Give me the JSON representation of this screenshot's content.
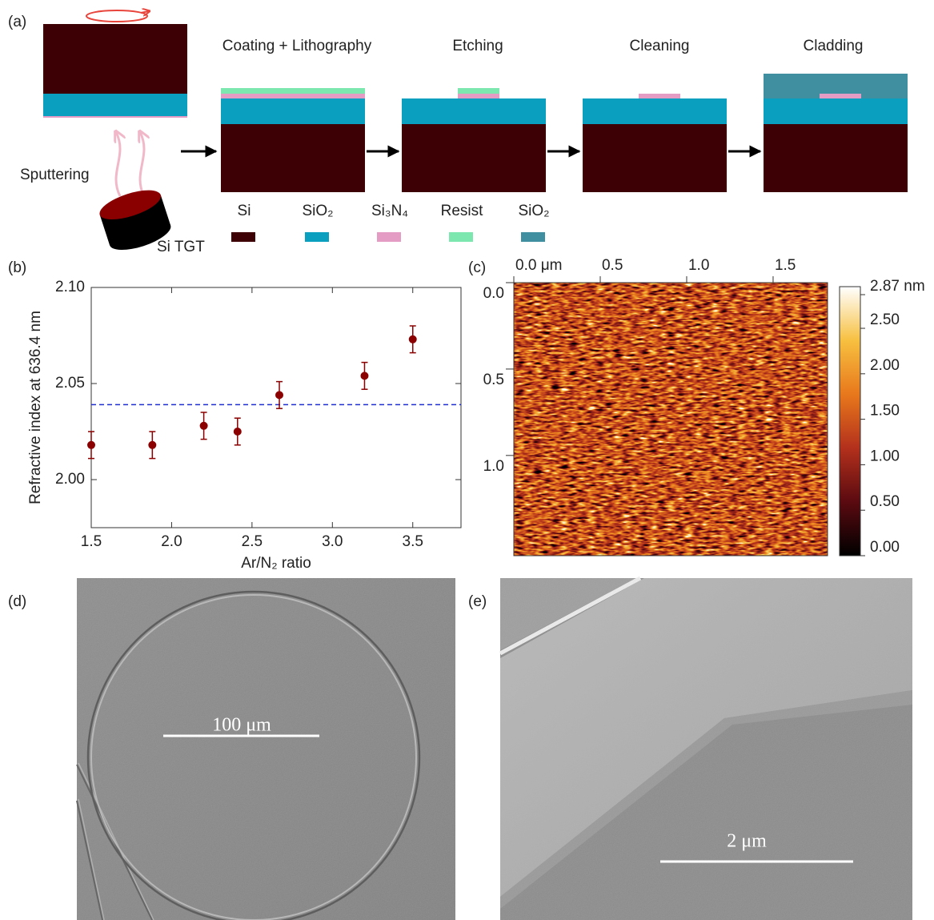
{
  "panel_labels": [
    "(a)",
    "(b)",
    "(c)",
    "(d)",
    "(e)"
  ],
  "fabrication": {
    "sputtering": "Sputtering",
    "target": "Si TGT",
    "steps": [
      "Coating + Lithography",
      "Etching",
      "Cleaning",
      "Cladding"
    ],
    "legend": [
      {
        "label": "Si",
        "color": "#3d0004"
      },
      {
        "label": "SiO₂",
        "color": "#0b9fbf"
      },
      {
        "label": "Si₃N₄",
        "color": "#e49cc4"
      },
      {
        "label": "Resist",
        "color": "#7ce8b0"
      },
      {
        "label": "SiO₂",
        "color": "#3f8fa0"
      }
    ]
  },
  "chart_data": [
    {
      "type": "scatter",
      "xlabel": "Ar/N₂ ratio",
      "ylabel": "Refractive index at 636.4 nm",
      "x": [
        1.5,
        1.88,
        2.2,
        2.41,
        2.67,
        3.2,
        3.5
      ],
      "series": [
        {
          "color": "#8b0000",
          "values": [
            2.018,
            2.018,
            2.028,
            2.025,
            2.044,
            2.054,
            2.073
          ],
          "errors": [
            0.007,
            0.007,
            0.007,
            0.007,
            0.007,
            0.007,
            0.007
          ]
        }
      ],
      "xlim": [
        1.5,
        3.8
      ],
      "ylim": [
        1.975,
        2.1
      ],
      "xticks": [
        1.5,
        {
          "value": 2,
          "label": "2.0"
        },
        2.5,
        {
          "value": 3,
          "label": "3.0"
        },
        3.5
      ],
      "yticks": [
        {
          "value": 2,
          "label": "2.00"
        },
        2.05,
        {
          "value": 2.1,
          "label": "2.10"
        }
      ],
      "reference_line": {
        "value": 2.039,
        "color": "#1f2ecc"
      }
    },
    {
      "type": "heatmap",
      "xlim": [
        0,
        1.815
      ],
      "ylim": [
        0,
        1.58
      ],
      "xticks": [
        {
          "value": 0,
          "label": "0.0 μm"
        },
        0.5,
        {
          "value": 1,
          "label": "1.0"
        },
        1.5
      ],
      "yticks": [
        {
          "value": 0,
          "label": "0.0"
        },
        0.5,
        {
          "value": 1,
          "label": "1.0"
        }
      ],
      "clim": [
        0,
        2.87
      ],
      "cticks": [
        {
          "value": 0,
          "label": "0.00"
        },
        {
          "value": 0.5,
          "label": "0.50"
        },
        {
          "value": 1,
          "label": "1.00"
        },
        {
          "value": 1.5,
          "label": "1.50"
        },
        {
          "value": 2,
          "label": "2.00"
        },
        {
          "value": 2.5,
          "label": "2.50"
        },
        {
          "value": 2.87,
          "label": "2.87 nm"
        }
      ],
      "colormap": [
        "#000000",
        "#5a0a10",
        "#b3301c",
        "#e8781c",
        "#f7c040",
        "#ffffff"
      ]
    }
  ],
  "sem": {
    "scale_bars": [
      "100 μm",
      "2 μm"
    ]
  }
}
